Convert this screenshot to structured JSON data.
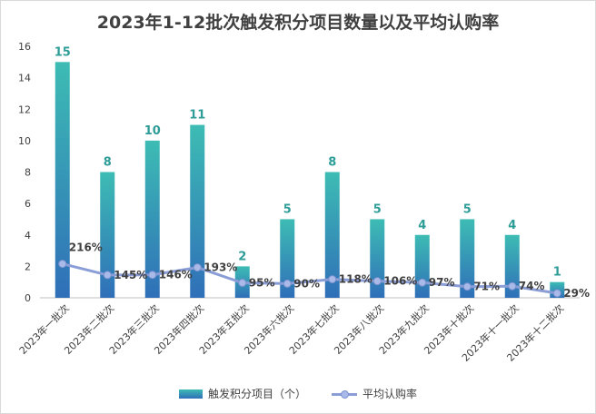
{
  "chart_data": {
    "type": "bar",
    "title": "2023年1-12批次触发积分项目数量以及平均认购率",
    "categories": [
      "2023年一批次",
      "2023年二批次",
      "2023年三批次",
      "2023年四批次",
      "2023年五批次",
      "2023年六批次",
      "2023年七批次",
      "2023年八批次",
      "2023年九批次",
      "2023年十批次",
      "2023年十一批次",
      "2023年十二批次"
    ],
    "series": [
      {
        "name": "触发积分项目（个）",
        "kind": "bar",
        "values": [
          15,
          8,
          10,
          11,
          2,
          5,
          8,
          5,
          4,
          5,
          4,
          1
        ]
      },
      {
        "name": "平均认购率",
        "kind": "line",
        "values": [
          2.16,
          1.45,
          1.46,
          1.93,
          0.95,
          0.9,
          1.18,
          1.06,
          0.97,
          0.71,
          0.74,
          0.29
        ],
        "labels": [
          "216%",
          "145%",
          "146%",
          "193%",
          "95%",
          "90%",
          "118%",
          "106%",
          "97%",
          "71%",
          "74%",
          "29%"
        ]
      }
    ],
    "ylim": [
      0,
      16
    ],
    "yticks": [
      0,
      2,
      4,
      6,
      8,
      10,
      12,
      14,
      16
    ],
    "xlabel": "",
    "ylabel": "",
    "grid": false,
    "legend": "bottom",
    "colors": {
      "bar_top": "#3dbcb4",
      "bar_bottom": "#2f6fb8",
      "bar_label": "#2e9c97",
      "line": "#8a9dd6",
      "marker": "#a9b9e8",
      "marker_edge": "#7d92cf",
      "text": "#404040",
      "axis": "#bfbfbf"
    }
  }
}
